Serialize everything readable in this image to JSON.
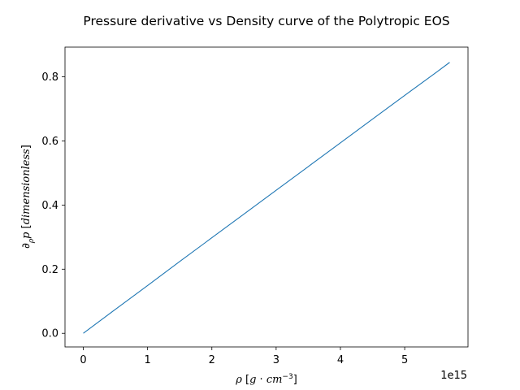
{
  "chart_data": {
    "type": "line",
    "title": "Pressure derivative vs Density curve of the Polytropic EOS",
    "xlabel": "ρ [g·cm⁻³]",
    "ylabel": "∂ρp [dimensionless]",
    "x_offset_text": "1e15",
    "xlim": [
      -0.285,
      5.985
    ],
    "ylim": [
      -0.0425,
      0.8925
    ],
    "xticks": [
      0,
      1,
      2,
      3,
      4,
      5
    ],
    "yticks": [
      0.0,
      0.2,
      0.4,
      0.6,
      0.8
    ],
    "xtick_labels": [
      "0",
      "1",
      "2",
      "3",
      "4",
      "5"
    ],
    "ytick_labels": [
      "0.0",
      "0.2",
      "0.4",
      "0.6",
      "0.8"
    ],
    "grid": false,
    "series": [
      {
        "color": "#1f77b4",
        "x": [
          0,
          0.5,
          1.0,
          1.5,
          2.0,
          2.5,
          3.0,
          3.5,
          4.0,
          4.5,
          5.0,
          5.5,
          5.7
        ],
        "y": [
          0.0,
          0.075,
          0.149,
          0.224,
          0.298,
          0.372,
          0.446,
          0.52,
          0.594,
          0.668,
          0.742,
          0.815,
          0.845
        ]
      }
    ]
  }
}
